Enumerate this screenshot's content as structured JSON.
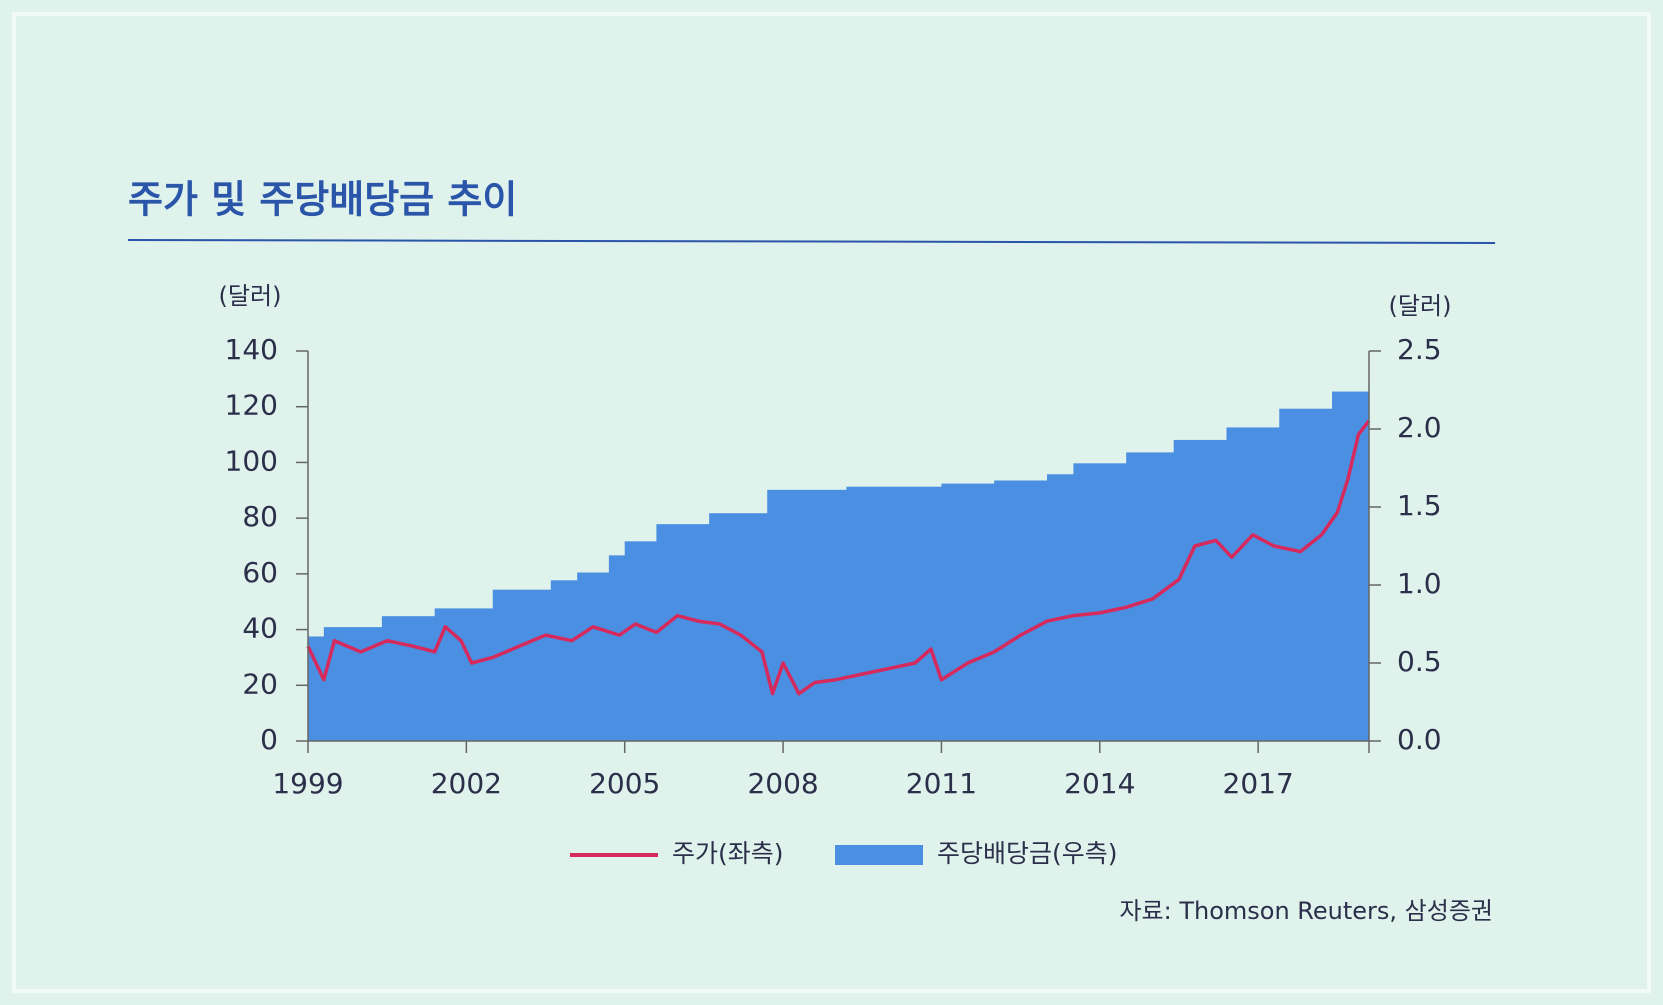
{
  "chart_data": {
    "type": "line-area",
    "title": "주가 및 주당배당금 추이",
    "ylabel": "(달러)",
    "y2label": "(달러)",
    "source": "자료: Thomson Reuters, 삼성증권",
    "xlim": [
      1999,
      2019.1
    ],
    "xticks": [
      1999,
      2002,
      2005,
      2008,
      2011,
      2014,
      2017
    ],
    "ylim": [
      0,
      140
    ],
    "yticks": [
      0,
      20,
      40,
      60,
      80,
      100,
      120,
      140
    ],
    "y2lim": [
      0,
      2.5
    ],
    "y2ticks": [
      {
        "value": 0,
        "label": "0.0"
      },
      0.5,
      {
        "value": 1,
        "label": "1.0"
      },
      1.5,
      {
        "value": 2,
        "label": "2.0"
      },
      2.5
    ],
    "series": [
      {
        "name": "주가(좌측)",
        "kind": "line",
        "color": "#d6295c",
        "x": [
          1999.0,
          1999.3,
          1999.5,
          2000,
          2000.5,
          2001,
          2001.4,
          2001.6,
          2001.9,
          2002.1,
          2002.5,
          2003,
          2003.5,
          2004,
          2004.4,
          2004.9,
          2005.2,
          2005.6,
          2006,
          2006.4,
          2006.8,
          2007.2,
          2007.6,
          2007.8,
          2008,
          2008.3,
          2008.6,
          2009,
          2009.5,
          2010,
          2010.5,
          2010.8,
          2011.0,
          2011.5,
          2012,
          2012.5,
          2013,
          2013.5,
          2014,
          2014.5,
          2015,
          2015.5,
          2015.8,
          2016.2,
          2016.5,
          2016.9,
          2017.3,
          2017.8,
          2018.2,
          2018.5,
          2018.7,
          2018.9,
          2019.1
        ],
        "values": [
          34,
          22,
          36,
          32,
          36,
          34,
          32,
          41,
          36,
          28,
          30,
          34,
          38,
          36,
          41,
          38,
          42,
          39,
          45,
          43,
          42,
          38,
          32,
          17,
          28,
          17,
          21,
          22,
          24,
          26,
          28,
          33,
          22,
          28,
          32,
          38,
          43,
          45,
          46,
          48,
          51,
          58,
          70,
          72,
          66,
          74,
          70,
          68,
          74,
          82,
          94,
          110,
          115
        ]
      },
      {
        "name": "주당배당금(우측)",
        "kind": "step-area",
        "axis": "y2",
        "color": "#4a8fe2",
        "x": [
          1999.0,
          1999.3,
          2000.4,
          2001.4,
          2002.5,
          2003.6,
          2004.1,
          2004.7,
          2005.0,
          2005.6,
          2006.6,
          2007.7,
          2009.2,
          2011.0,
          2012.0,
          2013.0,
          2013.5,
          2014.5,
          2015.4,
          2016.4,
          2017.4,
          2018.4
        ],
        "values": [
          0.67,
          0.73,
          0.8,
          0.85,
          0.97,
          1.03,
          1.08,
          1.19,
          1.28,
          1.39,
          1.46,
          1.61,
          1.63,
          1.65,
          1.67,
          1.71,
          1.78,
          1.85,
          1.93,
          2.01,
          2.13,
          2.24
        ]
      }
    ]
  }
}
